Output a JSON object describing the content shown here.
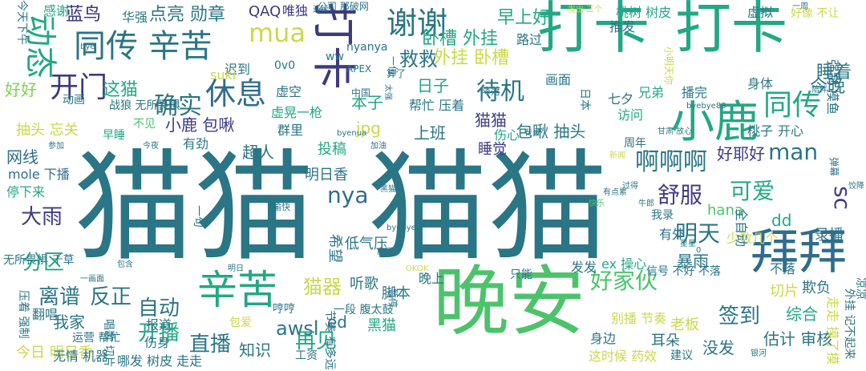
{
  "colors": {
    "background": "#ffffff",
    "teal": "#2a7586",
    "blue": "#2f6c8e",
    "green": "#4cc36b",
    "darkPurple": "#3c3b82",
    "indigo": "#453a85",
    "yellow": "#c9d94a",
    "lime": "#7fd04f",
    "seaGreen": "#22a884",
    "darkTeal": "#26828e",
    "purple": "#472d7b"
  },
  "words": [
    {
      "text": "猫猫",
      "color": "#2a7586"
    },
    {
      "text": "猫猫",
      "color": "#2a7586"
    },
    {
      "text": "晚安",
      "color": "#4cc36b"
    },
    {
      "text": "拜拜",
      "color": "#2f6c8e"
    },
    {
      "text": "打卡",
      "color": "#22a884"
    },
    {
      "text": "打卡",
      "color": "#22a884"
    },
    {
      "text": "小鹿",
      "color": "#22a884"
    },
    {
      "text": "辛苦",
      "color": "#22a884"
    },
    {
      "text": "打卡",
      "color": "#3c3b82"
    },
    {
      "text": "同传 辛苦",
      "color": "#2a7586"
    },
    {
      "text": "谢谢",
      "color": "#2a7586"
    },
    {
      "text": "动态",
      "color": "#22a884"
    },
    {
      "text": "mua",
      "color": "#c9d94a"
    },
    {
      "text": "休息",
      "color": "#2f6c8e"
    },
    {
      "text": "同传",
      "color": "#22a884"
    },
    {
      "text": "开门",
      "color": "#3c3b82"
    },
    {
      "text": "确实",
      "color": "#2a7586"
    },
    {
      "text": "待机",
      "color": "#2a7586"
    },
    {
      "text": "啊啊啊",
      "color": "#2a7586"
    },
    {
      "text": "好家伙",
      "color": "#4cc36b"
    },
    {
      "text": "nya",
      "color": "#2f6c8e"
    },
    {
      "text": "man",
      "color": "#2a7586"
    },
    {
      "text": "舒服",
      "color": "#453a85"
    },
    {
      "text": "可爱",
      "color": "#22a884"
    },
    {
      "text": "明天",
      "color": "#2a7586"
    },
    {
      "text": "sc",
      "color": "#453a85"
    },
    {
      "text": "签到",
      "color": "#2a7586"
    },
    {
      "text": "自动",
      "color": "#2a7586"
    },
    {
      "text": "开播",
      "color": "#22a884"
    },
    {
      "text": "直播",
      "color": "#2a7586"
    },
    {
      "text": "awsl",
      "color": "#2a7586"
    },
    {
      "text": "再见",
      "color": "#22a884"
    },
    {
      "text": "离谱",
      "color": "#2a7586"
    },
    {
      "text": "反正",
      "color": "#2a7586"
    },
    {
      "text": "分区",
      "color": "#22a884"
    },
    {
      "text": "大雨",
      "color": "#3c3b82"
    },
    {
      "text": "猫器",
      "color": "#c9d94a"
    },
    {
      "text": "蓝鸟",
      "color": "#3c3b82"
    },
    {
      "text": "点亮 勋章",
      "color": "#2a7586"
    },
    {
      "text": "QAQ",
      "color": "#3c3b82"
    },
    {
      "text": "唯独",
      "color": "#3c3b82"
    },
    {
      "text": "卧槽 外挂",
      "color": "#22a884"
    },
    {
      "text": "早上好",
      "color": "#22a884"
    },
    {
      "text": "救救",
      "color": "#2a7586"
    },
    {
      "text": "外挂 卧槽",
      "color": "#c9d94a"
    },
    {
      "text": "睡着",
      "color": "#2a7586"
    },
    {
      "text": "今晚",
      "color": "#2a7586"
    },
    {
      "text": "这猫",
      "color": "#22a884"
    },
    {
      "text": "好好",
      "color": "#7fd04f"
    },
    {
      "text": "日子",
      "color": "#22a884"
    },
    {
      "text": "本子",
      "color": "#22a884"
    },
    {
      "text": "上班",
      "color": "#2a7586"
    },
    {
      "text": "猫猫",
      "color": "#3c3b82"
    },
    {
      "text": "睡觉",
      "color": "#3c3b82"
    },
    {
      "text": "小鹿 包啾",
      "color": "#3c3b82"
    },
    {
      "text": "包啾 抽头",
      "color": "#2a7586"
    },
    {
      "text": "好耶好",
      "color": "#3c3b82"
    },
    {
      "text": "网线",
      "color": "#2f6c8e"
    },
    {
      "text": "抽头 忘关",
      "color": "#c9d94a"
    },
    {
      "text": "超人",
      "color": "#2a7586"
    },
    {
      "text": "jpg",
      "color": "#c9d94a"
    },
    {
      "text": "投稿",
      "color": "#22a884"
    },
    {
      "text": "明日香",
      "color": "#2a7586"
    },
    {
      "text": "mole 下播",
      "color": "#2f6c8e"
    },
    {
      "text": "停下来",
      "color": "#22a884"
    },
    {
      "text": "hana",
      "color": "#4cc36b"
    },
    {
      "text": "dd",
      "color": "#22a884"
    },
    {
      "text": "录播",
      "color": "#2a7586"
    },
    {
      "text": "暴雨",
      "color": "#2a7586"
    },
    {
      "text": "估计 审核",
      "color": "#2a7586"
    },
    {
      "text": "综合",
      "color": "#22a884"
    },
    {
      "text": "没发",
      "color": "#2a7586"
    },
    {
      "text": "耳朵",
      "color": "#2a7586"
    },
    {
      "text": "老板",
      "color": "#c9d94a"
    },
    {
      "text": "欺负",
      "color": "#2a7586"
    },
    {
      "text": "切片",
      "color": "#c9d94a"
    },
    {
      "text": "今日 明日香",
      "color": "#c9d94a"
    },
    {
      "text": "我家",
      "color": "#2a7586"
    },
    {
      "text": "知识",
      "color": "#2a7586"
    },
    {
      "text": "ed",
      "color": "#2a7586"
    },
    {
      "text": "黑猫",
      "color": "#22a884"
    },
    {
      "text": "脚本",
      "color": "#2a7586"
    },
    {
      "text": "晚上",
      "color": "#2a7586"
    },
    {
      "text": "听歌",
      "color": "#2a7586"
    },
    {
      "text": "希望",
      "color": "#2a7586"
    },
    {
      "text": "低气压",
      "color": "#2a7586"
    },
    {
      "text": "有外",
      "color": "#2a7586"
    },
    {
      "text": "不落",
      "color": "#2a7586"
    },
    {
      "text": "少数几个",
      "color": "#c9d94a"
    },
    {
      "text": "全自动",
      "color": "#2a7586"
    },
    {
      "text": "桃树 树皮",
      "color": "#22a884"
    },
    {
      "text": "推发",
      "color": "#2a7586"
    },
    {
      "text": "好像 不让",
      "color": "#c9d94a"
    },
    {
      "text": "路过",
      "color": "#2a7586"
    },
    {
      "text": "画面",
      "color": "#2a7586"
    },
    {
      "text": "七夕",
      "color": "#2a7586"
    },
    {
      "text": "兄弟",
      "color": "#22a884"
    },
    {
      "text": "播完",
      "color": "#2a7586"
    },
    {
      "text": "身体",
      "color": "#2a7586"
    },
    {
      "text": "虚拟",
      "color": "#2a7586"
    },
    {
      "text": "帮忙 压着",
      "color": "#2a7586"
    },
    {
      "text": "桃子",
      "color": "#2a7586"
    },
    {
      "text": "开心",
      "color": "#2a7586"
    },
    {
      "text": "访问",
      "color": "#22a884"
    },
    {
      "text": "伤心",
      "color": "#22a884"
    },
    {
      "text": "周年",
      "color": "#2a7586"
    },
    {
      "text": "我录",
      "color": "#2a7586"
    },
    {
      "text": "迟到",
      "color": "#2a7586"
    },
    {
      "text": "动画",
      "color": "#2a7586"
    },
    {
      "text": "suki",
      "color": "#c9d94a"
    },
    {
      "text": "虚空",
      "color": "#2a7586"
    },
    {
      "text": "群里",
      "color": "#2a7586"
    },
    {
      "text": "虚晃一枪",
      "color": "#22a884"
    },
    {
      "text": "有劲",
      "color": "#2a7586"
    },
    {
      "text": "早睡",
      "color": "#22a884"
    },
    {
      "text": "战狼 无所畏惧",
      "color": "#2a7586"
    },
    {
      "text": "不见",
      "color": "#4cc36b"
    },
    {
      "text": "蓝鸟",
      "color": "#3c3b82"
    },
    {
      "text": "华强",
      "color": "#2a7586"
    },
    {
      "text": "感谢",
      "color": "#22a884"
    },
    {
      "text": "公司 那破网",
      "color": "#2a7586"
    },
    {
      "text": "运营 帮忙",
      "color": "#2a7586"
    },
    {
      "text": "伤身",
      "color": "#2a7586"
    },
    {
      "text": "报道",
      "color": "#2a7586"
    },
    {
      "text": "翻唱",
      "color": "#2a7586"
    },
    {
      "text": "一段 腹太鼓",
      "color": "#2a7586"
    },
    {
      "text": "只能",
      "color": "#2a7586"
    },
    {
      "text": "发发",
      "color": "#2a7586"
    },
    {
      "text": "ex 操心",
      "color": "#22a884"
    },
    {
      "text": "信号 不好 不落",
      "color": "#2a7586"
    },
    {
      "text": "别播 节奏",
      "color": "#c9d94a"
    },
    {
      "text": "身边",
      "color": "#2a7586"
    },
    {
      "text": "这时候 药效",
      "color": "#c9d94a"
    },
    {
      "text": "建议",
      "color": "#2a7586"
    },
    {
      "text": "哪发 树皮 走走",
      "color": "#2a7586"
    },
    {
      "text": "无情 机器",
      "color": "#2a7586"
    },
    {
      "text": "包爱",
      "color": "#c9d94a"
    },
    {
      "text": "哼哼",
      "color": "#2a7586"
    },
    {
      "text": "工资",
      "color": "#2a7586"
    },
    {
      "text": "无所畏惧 千草",
      "color": "#2a7586"
    },
    {
      "text": "0v0",
      "color": "#2a7586"
    },
    {
      "text": "nyanya",
      "color": "#2a7586"
    },
    {
      "text": "ww",
      "color": "#2a7586"
    },
    {
      "text": "中国",
      "color": "#2a7586"
    },
    {
      "text": "APEX",
      "color": "#2a7586"
    },
    {
      "text": "算了",
      "color": "#2a7586"
    },
    {
      "text": "今天下午",
      "color": "#2a7586"
    },
    {
      "text": "压着 强制",
      "color": "#2a7586"
    },
    {
      "text": "唱歌 切片",
      "color": "#2a7586"
    },
    {
      "text": "一句",
      "color": "#2a7586"
    },
    {
      "text": "走走 摸了摸",
      "color": "#c9d94a"
    },
    {
      "text": "强制 摸鱼",
      "color": "#2a7586"
    },
    {
      "text": "外挂 记不起来",
      "color": "#2a7586"
    },
    {
      "text": "小明天你",
      "color": "#c9d94a"
    },
    {
      "text": "发出 三个",
      "color": "#c9d94a"
    },
    {
      "text": "一周",
      "color": "#2a7586"
    },
    {
      "text": "byebye88",
      "color": "#2a7586"
    },
    {
      "text": "有点累",
      "color": "#2a7586"
    },
    {
      "text": "加油",
      "color": "#2a7586"
    },
    {
      "text": "参加",
      "color": "#2a7586"
    },
    {
      "text": "今夜",
      "color": "#2a7586"
    },
    {
      "text": "愉快",
      "color": "#2a7586"
    },
    {
      "text": "快乐",
      "color": "#4cc36b"
    },
    {
      "text": "新闻",
      "color": "#c9d94a"
    },
    {
      "text": "过得",
      "color": "#2a7586"
    },
    {
      "text": "明日",
      "color": "#2a7586"
    },
    {
      "text": "OKOK",
      "color": "#c9d94a"
    },
    {
      "text": "陪伴",
      "color": "#2a7586"
    },
    {
      "text": "银河",
      "color": "#2a7586"
    },
    {
      "text": "连续",
      "color": "#2a7586"
    },
    {
      "text": "一位",
      "color": "#2a7586"
    },
    {
      "text": "背景",
      "color": "#2a7586"
    },
    {
      "text": "暂停",
      "color": "#2a7586"
    },
    {
      "text": "节奏 有多远",
      "color": "#2a7586"
    },
    {
      "text": "日本",
      "color": "#2a7586"
    },
    {
      "text": "太强",
      "color": "#2a7586"
    },
    {
      "text": "弹幕",
      "color": "#2a7586"
    },
    {
      "text": "凉凉",
      "color": "#2a7586"
    },
    {
      "text": "降落",
      "color": "#2a7586"
    },
    {
      "text": "甘肃 放心",
      "color": "#2a7586"
    },
    {
      "text": "包含",
      "color": "#2a7586"
    },
    {
      "text": "一画面",
      "color": "#2a7586"
    },
    {
      "text": "bye",
      "color": "#2a7586"
    },
    {
      "text": "byenua",
      "color": "#2a7586"
    },
    {
      "text": "byebye",
      "color": "#2a7586"
    },
    {
      "text": "房间",
      "color": "#2a7586"
    },
    {
      "text": "牛郎",
      "color": "#2a7586"
    },
    {
      "text": "黑猫",
      "color": "#2a7586"
    },
    {
      "text": "星星",
      "color": "#2a7586"
    },
    {
      "text": "0",
      "color": "#2a7586"
    },
    {
      "text": "饺降",
      "color": "#2a7586"
    },
    {
      "text": "新闻",
      "color": "#2a7586"
    },
    {
      "text": "播嘛",
      "color": "#2a7586"
    },
    {
      "text": "飞机",
      "color": "#2a7586"
    }
  ]
}
